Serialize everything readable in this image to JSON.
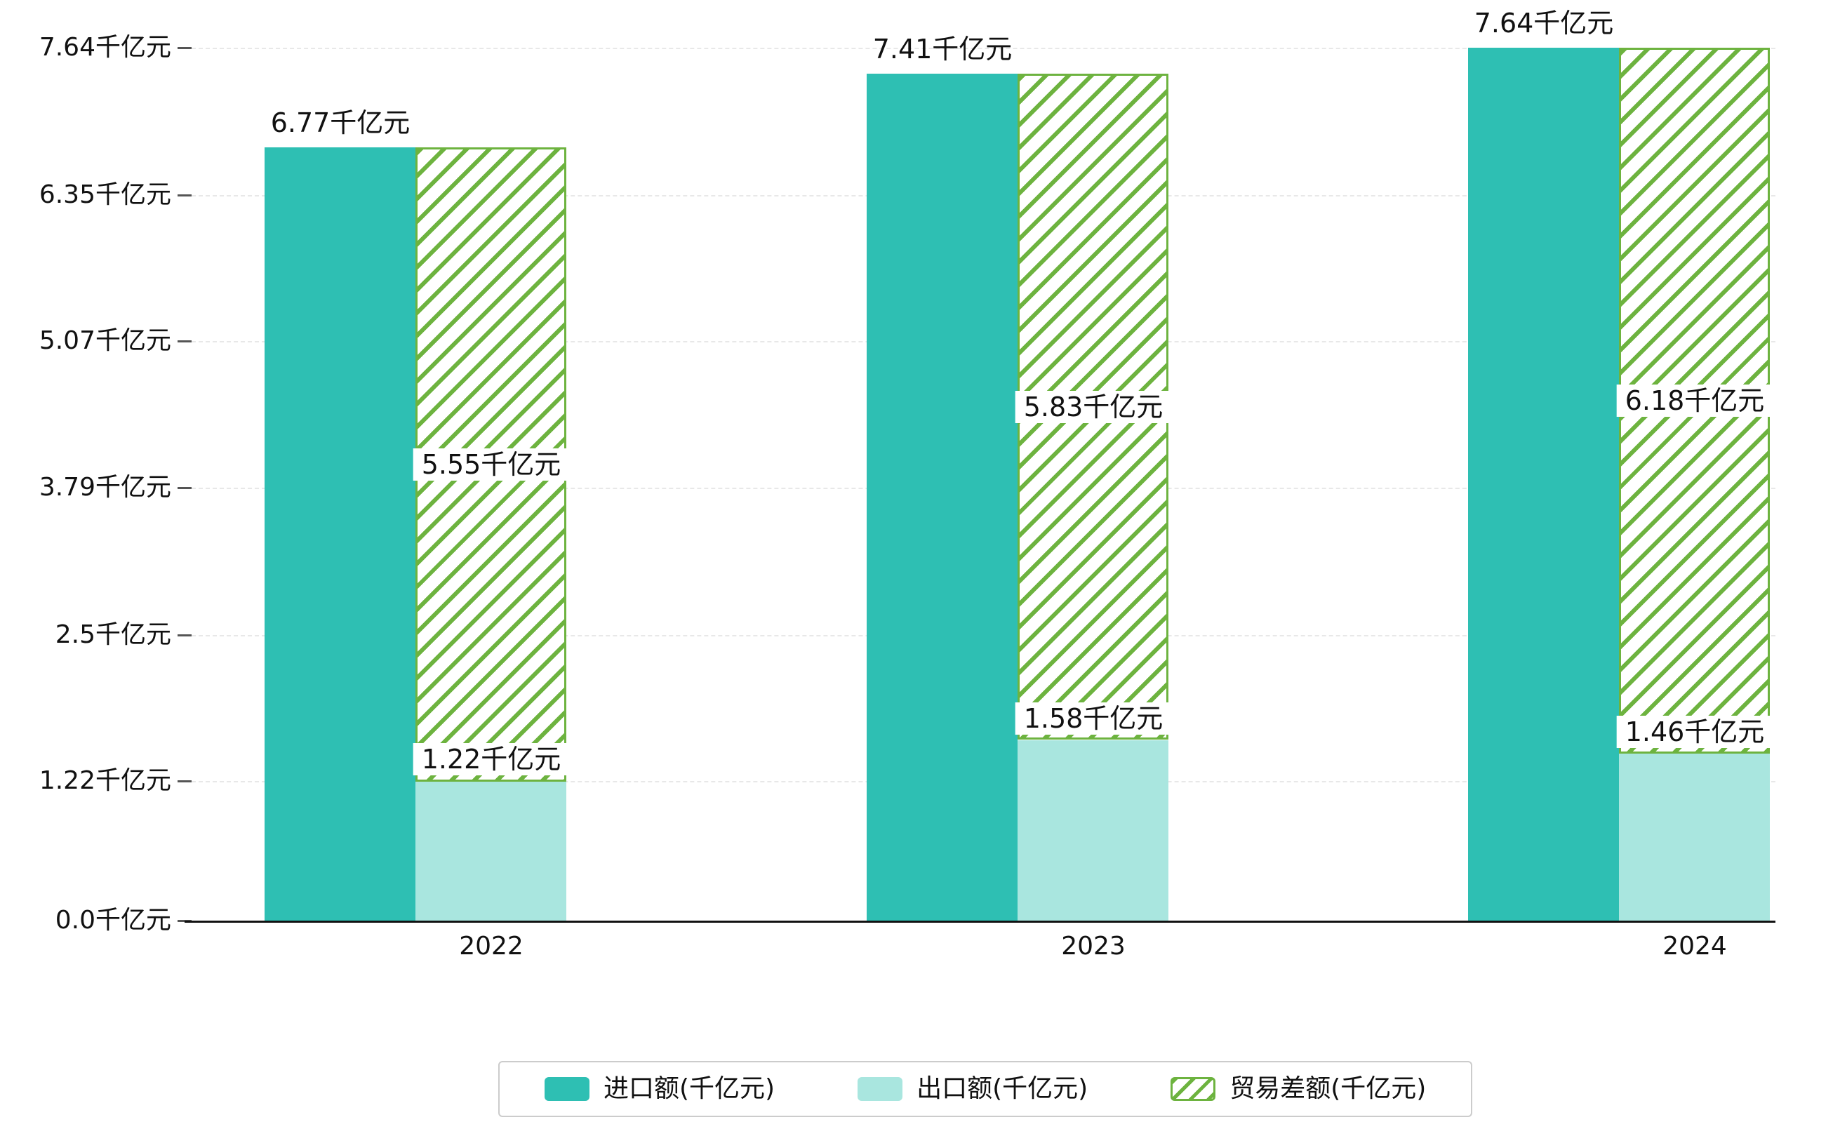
{
  "chart_data": {
    "type": "bar",
    "title": "",
    "unit": "千亿元",
    "categories": [
      "2022",
      "2023",
      "2024"
    ],
    "series": [
      {
        "key": "import",
        "name": "进口额(千亿元)",
        "values": [
          6.77,
          7.41,
          7.64
        ],
        "labels": [
          "6.77千亿元",
          "7.41千亿元",
          "7.64千亿元"
        ],
        "color": "#2ebfb3",
        "style": "solid"
      },
      {
        "key": "export",
        "name": "出口额(千亿元)",
        "values": [
          1.22,
          1.58,
          1.46
        ],
        "labels": [
          "1.22千亿元",
          "1.58千亿元",
          "1.46千亿元"
        ],
        "color": "#a9e6df",
        "style": "solid"
      },
      {
        "key": "balance",
        "name": "贸易差额(千亿元)",
        "values": [
          5.55,
          5.83,
          6.18
        ],
        "labels": [
          "5.55千亿元",
          "5.83千亿元",
          "6.18千亿元"
        ],
        "color": "#6db33f",
        "style": "hatched-floating",
        "base_series": "export"
      }
    ],
    "y_ticks": [
      {
        "value": 0.0,
        "label": "0.0千亿元"
      },
      {
        "value": 1.22,
        "label": "1.22千亿元"
      },
      {
        "value": 2.5,
        "label": "2.5千亿元"
      },
      {
        "value": 3.79,
        "label": "3.79千亿元"
      },
      {
        "value": 5.07,
        "label": "5.07千亿元"
      },
      {
        "value": 6.35,
        "label": "6.35千亿元"
      },
      {
        "value": 7.64,
        "label": "7.64千亿元"
      }
    ],
    "ylim": [
      0,
      7.64
    ],
    "grid": true,
    "legend_position": "bottom"
  },
  "legend": {
    "items": [
      {
        "label": "进口额(千亿元)"
      },
      {
        "label": "出口额(千亿元)"
      },
      {
        "label": "贸易差额(千亿元)"
      }
    ]
  },
  "colors": {
    "import": "#2ebfb3",
    "export": "#a9e6df",
    "balance_hatch": "#6db33f",
    "axis": "#111111",
    "grid": "#e8e8e8",
    "background": "#ffffff",
    "text": "#111111"
  }
}
